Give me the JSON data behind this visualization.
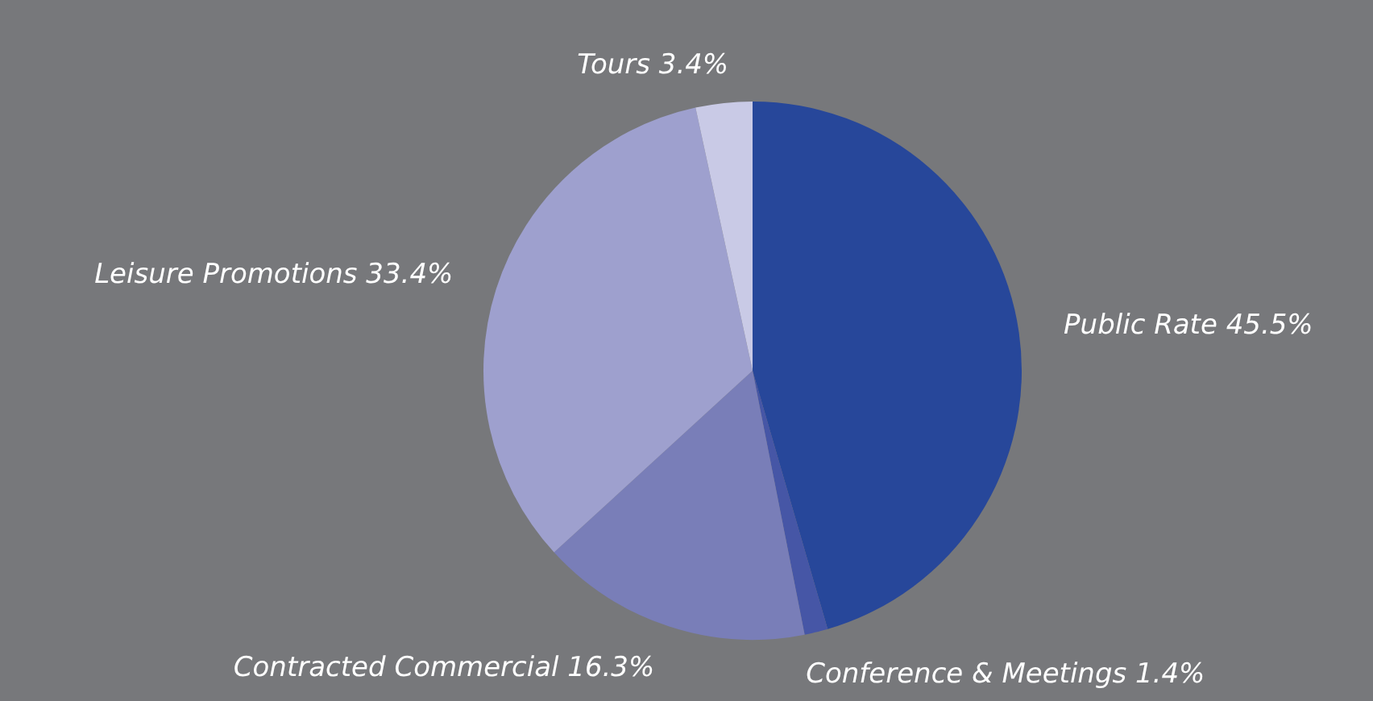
{
  "chart_data": {
    "type": "pie",
    "categories": [
      "Public Rate",
      "Conference & Meetings",
      "Contracted Commercial",
      "Leisure Promotions",
      "Tours"
    ],
    "values": [
      45.5,
      1.4,
      16.3,
      33.4,
      3.4
    ],
    "value_labels": [
      "45.5%",
      "1.4%",
      "16.3%",
      "33.4%",
      "3.4%"
    ],
    "colors": [
      "#27479a",
      "#4656a6",
      "#797eb8",
      "#9ea0ce",
      "#c9cae6"
    ],
    "legend": false
  }
}
